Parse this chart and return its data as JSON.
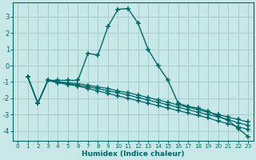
{
  "xlabel": "Humidex (Indice chaleur)",
  "background_color": "#c8e8e8",
  "grid_color": "#a8cccc",
  "line_color": "#006868",
  "xlim": [
    -0.5,
    23.5
  ],
  "ylim": [
    -4.6,
    3.85
  ],
  "yticks": [
    -4,
    -3,
    -2,
    -1,
    0,
    1,
    2,
    3
  ],
  "xticks": [
    0,
    1,
    2,
    3,
    4,
    5,
    6,
    7,
    8,
    9,
    10,
    11,
    12,
    13,
    14,
    15,
    16,
    17,
    18,
    19,
    20,
    21,
    22,
    23
  ],
  "main_curve_x": [
    1,
    2,
    3,
    4,
    5,
    6,
    7,
    8,
    9,
    10,
    11,
    12,
    13,
    14,
    15,
    16,
    17,
    18,
    19,
    20,
    21,
    22,
    23
  ],
  "main_curve_y": [
    -0.7,
    -2.3,
    -0.9,
    -0.9,
    -0.9,
    -0.9,
    0.75,
    0.65,
    2.4,
    3.45,
    3.5,
    2.6,
    1.0,
    0.0,
    -0.9,
    -2.3,
    -2.5,
    -2.6,
    -2.8,
    -3.1,
    -3.35,
    -3.85,
    -4.35
  ],
  "line1_x": [
    1,
    2,
    3,
    4,
    5,
    6,
    7,
    8,
    9,
    10,
    11,
    12,
    13,
    14,
    15,
    16,
    17,
    18,
    19,
    20,
    21,
    22,
    23
  ],
  "line1_y": [
    -0.7,
    -2.3,
    -0.9,
    -1.0,
    -1.05,
    -1.1,
    -1.2,
    -1.3,
    -1.4,
    -1.55,
    -1.65,
    -1.8,
    -1.95,
    -2.1,
    -2.25,
    -2.4,
    -2.55,
    -2.7,
    -2.85,
    -3.0,
    -3.15,
    -3.3,
    -3.45
  ],
  "line2_x": [
    1,
    2,
    3,
    4,
    5,
    6,
    7,
    8,
    9,
    10,
    11,
    12,
    13,
    14,
    15,
    16,
    17,
    18,
    19,
    20,
    21,
    22,
    23
  ],
  "line2_y": [
    -0.7,
    -2.3,
    -0.9,
    -1.0,
    -1.1,
    -1.2,
    -1.3,
    -1.4,
    -1.55,
    -1.65,
    -1.8,
    -1.95,
    -2.1,
    -2.25,
    -2.4,
    -2.55,
    -2.7,
    -2.85,
    -3.0,
    -3.15,
    -3.3,
    -3.5,
    -3.65
  ],
  "line3_x": [
    1,
    2,
    3,
    4,
    5,
    6,
    7,
    8,
    9,
    10,
    11,
    12,
    13,
    14,
    15,
    16,
    17,
    18,
    19,
    20,
    21,
    22,
    23
  ],
  "line3_y": [
    -0.7,
    -2.3,
    -0.9,
    -1.05,
    -1.15,
    -1.25,
    -1.4,
    -1.55,
    -1.7,
    -1.85,
    -2.0,
    -2.15,
    -2.3,
    -2.45,
    -2.6,
    -2.75,
    -2.9,
    -3.05,
    -3.2,
    -3.4,
    -3.55,
    -3.75,
    -3.9
  ]
}
